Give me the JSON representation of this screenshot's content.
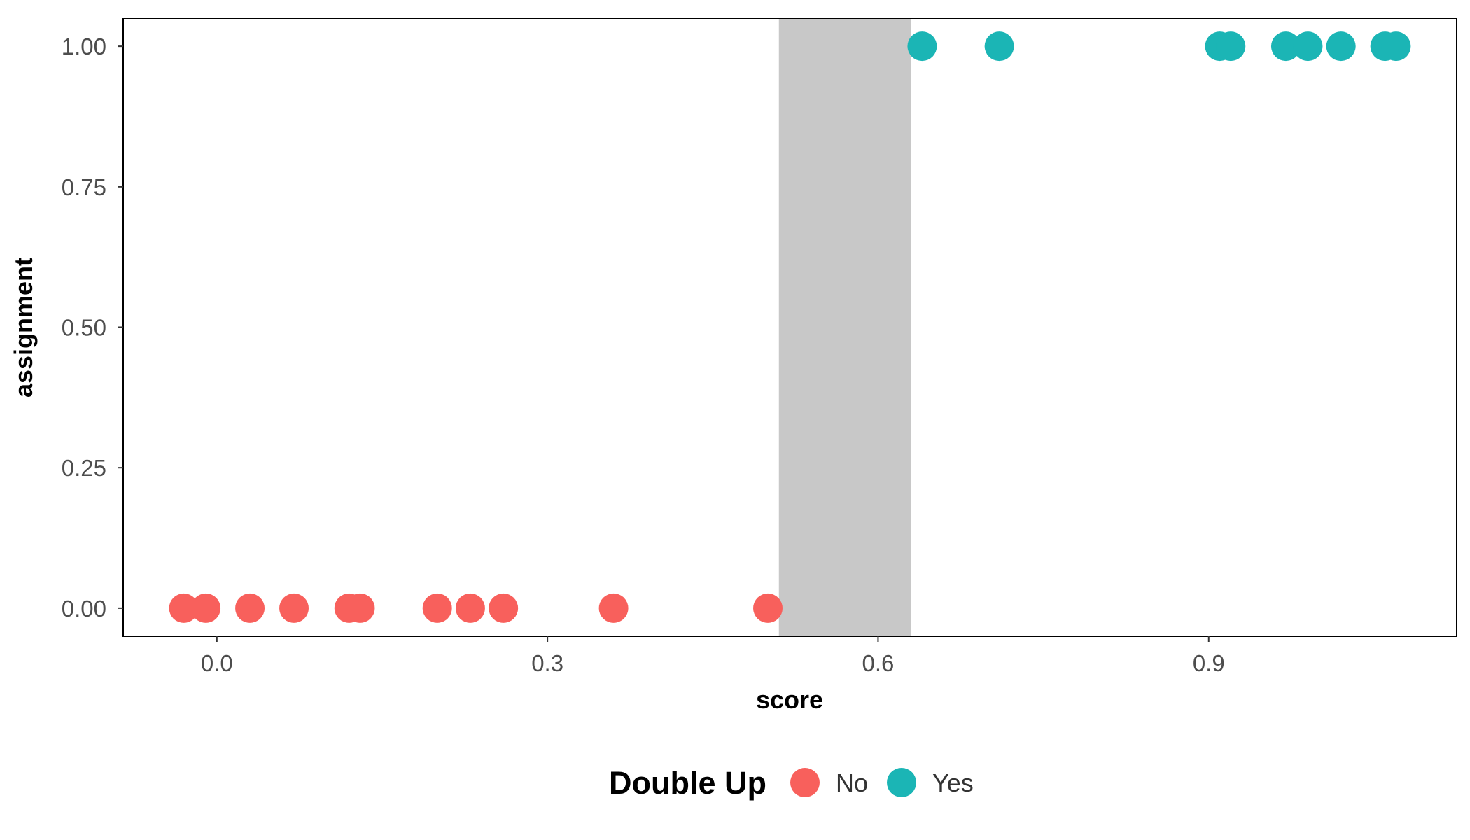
{
  "chart_data": {
    "type": "scatter",
    "title": "",
    "xlabel": "score",
    "ylabel": "assignment",
    "xlim": [
      -0.085,
      1.125
    ],
    "ylim": [
      -0.05,
      1.05
    ],
    "x_ticks": [
      {
        "value": 0.0,
        "label": "0.0"
      },
      {
        "value": 0.3,
        "label": "0.3"
      },
      {
        "value": 0.6,
        "label": "0.6"
      },
      {
        "value": 0.9,
        "label": "0.9"
      }
    ],
    "y_ticks": [
      {
        "value": 0.0,
        "label": "0.00"
      },
      {
        "value": 0.25,
        "label": "0.25"
      },
      {
        "value": 0.5,
        "label": "0.50"
      },
      {
        "value": 0.75,
        "label": "0.75"
      },
      {
        "value": 1.0,
        "label": "1.00"
      }
    ],
    "grid": false,
    "shaded_region": {
      "x_start": 0.51,
      "x_end": 0.63,
      "color": "#c8c8c8"
    },
    "legend": {
      "title": "Double Up",
      "position": "bottom",
      "entries": [
        {
          "label": "No",
          "color": "#f8605c"
        },
        {
          "label": "Yes",
          "color": "#1bb5b5"
        }
      ]
    },
    "series": [
      {
        "name": "No",
        "color": "#f8605c",
        "points": [
          {
            "x": -0.03,
            "y": 0
          },
          {
            "x": -0.01,
            "y": 0
          },
          {
            "x": 0.03,
            "y": 0
          },
          {
            "x": 0.07,
            "y": 0
          },
          {
            "x": 0.12,
            "y": 0
          },
          {
            "x": 0.13,
            "y": 0
          },
          {
            "x": 0.2,
            "y": 0
          },
          {
            "x": 0.23,
            "y": 0
          },
          {
            "x": 0.26,
            "y": 0
          },
          {
            "x": 0.36,
            "y": 0
          },
          {
            "x": 0.5,
            "y": 0
          }
        ]
      },
      {
        "name": "Yes",
        "color": "#1bb5b5",
        "points": [
          {
            "x": 0.64,
            "y": 1
          },
          {
            "x": 0.71,
            "y": 1
          },
          {
            "x": 0.91,
            "y": 1
          },
          {
            "x": 0.92,
            "y": 1
          },
          {
            "x": 0.97,
            "y": 1
          },
          {
            "x": 0.99,
            "y": 1
          },
          {
            "x": 1.02,
            "y": 1
          },
          {
            "x": 1.06,
            "y": 1
          },
          {
            "x": 1.07,
            "y": 1
          }
        ]
      }
    ]
  }
}
